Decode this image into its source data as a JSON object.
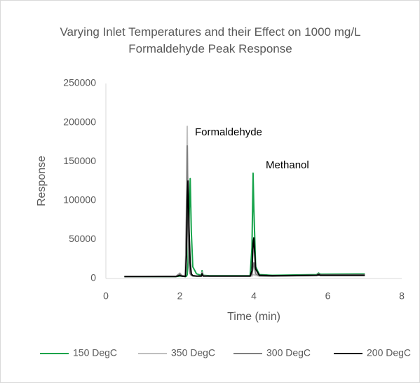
{
  "chart_data": {
    "type": "line",
    "title": "Varying Inlet Temperatures and their Effect on 1000 mg/L Formaldehyde Peak Response",
    "x_label": "Time (min)",
    "y_label": "Response",
    "annotations": [
      "Formaldehyde",
      "Methanol"
    ],
    "x": [
      0.5,
      1.9,
      2.0,
      2.05,
      2.15,
      2.18,
      2.2,
      2.22,
      2.25,
      2.28,
      2.31,
      2.35,
      2.45,
      2.58,
      2.6,
      2.63,
      2.8,
      3.9,
      3.95,
      3.98,
      4.0,
      4.05,
      4.15,
      4.5,
      5.7,
      5.75,
      5.8,
      7.0
    ],
    "series": [
      {
        "name": "150 DegC",
        "color": "#16a34a",
        "values": [
          2500,
          2500,
          3000,
          3000,
          2500,
          3000,
          5000,
          20000,
          80000,
          128000,
          60000,
          15000,
          6000,
          4000,
          10000,
          4000,
          3500,
          3500,
          40000,
          135000,
          90000,
          15000,
          5000,
          4000,
          5000,
          7000,
          5500,
          6000
        ]
      },
      {
        "name": "350 DegC",
        "color": "#bfbfbf",
        "values": [
          2500,
          3000,
          7000,
          4000,
          3000,
          100000,
          195000,
          60000,
          15000,
          6000,
          4000,
          3500,
          3000,
          3000,
          8000,
          3500,
          3000,
          3000,
          3000,
          5000,
          5000,
          4000,
          3000,
          3000,
          4000,
          6000,
          4500,
          5000
        ]
      },
      {
        "name": "300 DegC",
        "color": "#7f7f7f",
        "values": [
          2500,
          2800,
          6000,
          3500,
          3000,
          80000,
          170000,
          90000,
          20000,
          6000,
          4000,
          3500,
          3000,
          3000,
          7000,
          3500,
          3000,
          3000,
          5000,
          15000,
          20000,
          6000,
          3500,
          3000,
          4000,
          6000,
          4500,
          4500
        ]
      },
      {
        "name": "200 DegC",
        "color": "#000000",
        "values": [
          2500,
          2500,
          4000,
          3000,
          2500,
          30000,
          100000,
          125000,
          60000,
          20000,
          6000,
          3500,
          3000,
          3000,
          6000,
          3000,
          3000,
          3000,
          10000,
          45000,
          52000,
          12000,
          4000,
          3500,
          4000,
          5000,
          4000,
          4000
        ]
      }
    ],
    "xlim": [
      0,
      8
    ],
    "xticks": [
      0,
      2,
      4,
      6,
      8
    ],
    "ylim": [
      0,
      250000
    ],
    "yticks": [
      0,
      50000,
      100000,
      150000,
      200000,
      250000
    ],
    "grid": false,
    "legend": "bottom"
  }
}
